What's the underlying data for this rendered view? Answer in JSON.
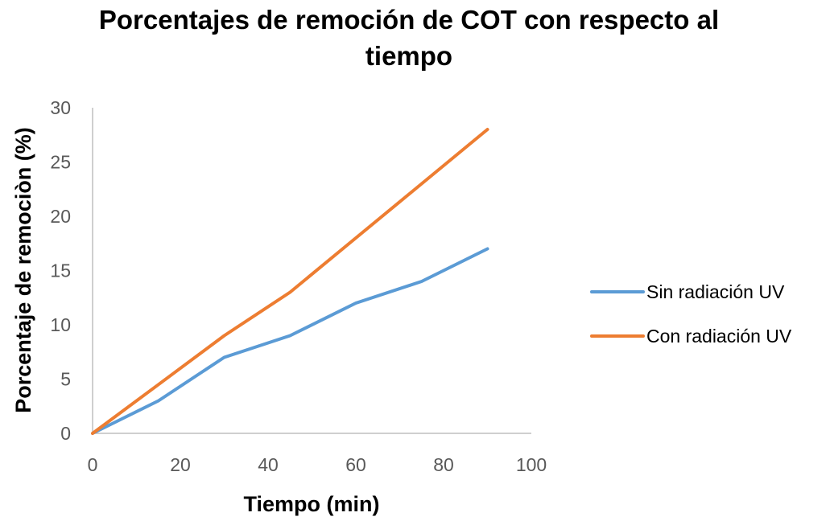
{
  "chart_data": {
    "type": "line",
    "title_lines": [
      "Porcentajes de remoción de COT con respecto al",
      "tiempo"
    ],
    "xlabel": "Tiempo (min)",
    "ylabel": "Porcentaje de remociòn (%)",
    "xlim": [
      0,
      100
    ],
    "ylim": [
      0,
      30
    ],
    "x_ticks": [
      0,
      20,
      40,
      60,
      80,
      100
    ],
    "y_ticks": [
      0,
      5,
      10,
      15,
      20,
      25,
      30
    ],
    "grid": false,
    "legend_position": "right",
    "series": [
      {
        "name": "Sin radiación UV",
        "color": "#5b9bd5",
        "x": [
          0,
          15,
          30,
          45,
          60,
          75,
          90
        ],
        "y": [
          0,
          3,
          7,
          9,
          12,
          14,
          17
        ]
      },
      {
        "name": "Con radiación UV",
        "color": "#ed7d31",
        "x": [
          0,
          15,
          30,
          45,
          60,
          75,
          90
        ],
        "y": [
          0,
          4.5,
          9,
          13,
          18,
          23,
          28
        ]
      }
    ]
  }
}
